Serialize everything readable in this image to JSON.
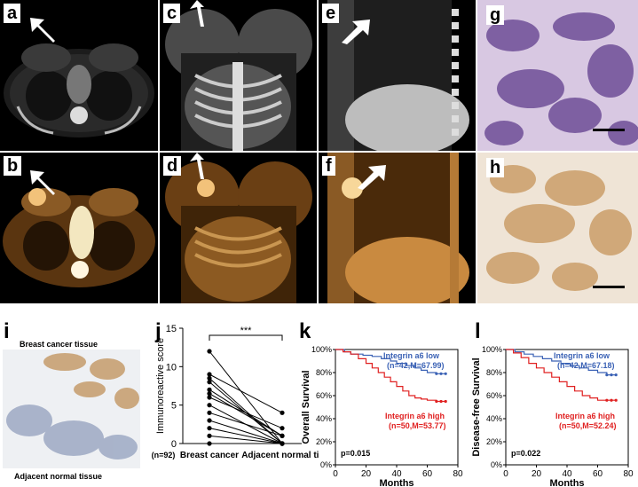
{
  "panels": {
    "a": "a",
    "b": "b",
    "c": "c",
    "d": "d",
    "e": "e",
    "f": "f",
    "g": "g",
    "h": "h",
    "i": "i",
    "j": "j",
    "k": "k",
    "l": "l"
  },
  "panel_i": {
    "top_label": "Breast cancer tissue",
    "bottom_label": "Adjacent normal tissue"
  },
  "chart_data": [
    {
      "type": "scatter",
      "panel": "j",
      "ylabel": "Immunoreactive score",
      "n_label": "(n=92)",
      "categories": [
        "Breast cancer",
        "Adjacent normal tissues"
      ],
      "yticks": [
        "0",
        "5",
        "10",
        "15"
      ],
      "ylim": [
        0,
        15
      ],
      "significance": "***",
      "pairs": [
        [
          12,
          0
        ],
        [
          9,
          4
        ],
        [
          8,
          0
        ],
        [
          7,
          1
        ],
        [
          6,
          2
        ],
        [
          5,
          0
        ],
        [
          4,
          1
        ],
        [
          3,
          0
        ],
        [
          2,
          0
        ],
        [
          1,
          0
        ],
        [
          0,
          0
        ],
        [
          8.5,
          0
        ],
        [
          6.5,
          1
        ]
      ]
    },
    {
      "type": "line",
      "panel": "k",
      "ylabel": "Overall Survival",
      "xlabel": "Months",
      "xticks": [
        "0",
        "20",
        "40",
        "60",
        "80"
      ],
      "yticks": [
        "0%",
        "20%",
        "40%",
        "60%",
        "80%",
        "100%"
      ],
      "xlim": [
        0,
        80
      ],
      "ylim": [
        0,
        100
      ],
      "pvalue": "p=0.015",
      "series": [
        {
          "name": "Integrin a6 low",
          "detail": "(n=42,M=67.99)",
          "color": "#3b62b5",
          "x": [
            0,
            6,
            10,
            18,
            24,
            30,
            36,
            40,
            46,
            52,
            56,
            60,
            66,
            72
          ],
          "y": [
            100,
            98,
            96,
            95,
            94,
            92,
            90,
            88,
            86,
            84,
            82,
            80,
            79,
            79
          ]
        },
        {
          "name": "Integrin a6 high",
          "detail": "(n=50,M=53.77)",
          "color": "#e02020",
          "x": [
            0,
            5,
            10,
            15,
            20,
            24,
            28,
            32,
            36,
            40,
            44,
            48,
            52,
            56,
            60,
            66,
            72
          ],
          "y": [
            100,
            98,
            96,
            92,
            88,
            84,
            80,
            76,
            72,
            68,
            64,
            60,
            58,
            57,
            56,
            55,
            55
          ]
        }
      ]
    },
    {
      "type": "line",
      "panel": "l",
      "ylabel": "Disease-free Survival",
      "xlabel": "Months",
      "xticks": [
        "0",
        "20",
        "40",
        "60",
        "80"
      ],
      "yticks": [
        "0%",
        "20%",
        "40%",
        "60%",
        "80%",
        "100%"
      ],
      "xlim": [
        0,
        80
      ],
      "ylim": [
        0,
        100
      ],
      "pvalue": "p=0.022",
      "series": [
        {
          "name": "Integrin a6 low",
          "detail": "(n=42,M=67.18)",
          "color": "#3b62b5",
          "x": [
            0,
            6,
            12,
            18,
            24,
            30,
            36,
            42,
            48,
            54,
            60,
            66,
            72
          ],
          "y": [
            100,
            98,
            96,
            94,
            92,
            90,
            88,
            86,
            84,
            82,
            80,
            78,
            78
          ]
        },
        {
          "name": "Integrin a6 high",
          "detail": "(n=50,M=52.24)",
          "color": "#e02020",
          "x": [
            0,
            5,
            10,
            15,
            20,
            25,
            30,
            35,
            40,
            45,
            50,
            55,
            60,
            66,
            72
          ],
          "y": [
            100,
            97,
            93,
            88,
            84,
            80,
            76,
            72,
            68,
            64,
            60,
            58,
            56,
            56,
            56
          ]
        }
      ]
    }
  ]
}
